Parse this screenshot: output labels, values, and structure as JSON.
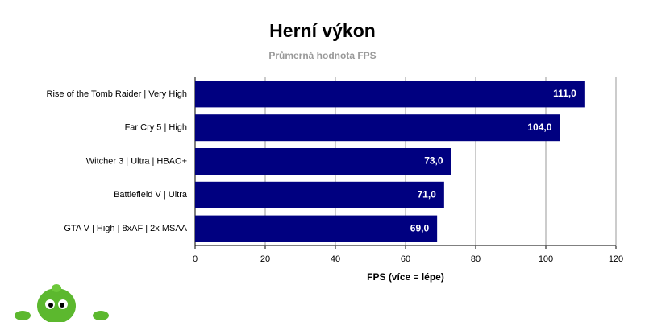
{
  "chart_data": {
    "type": "bar",
    "orientation": "horizontal",
    "title": "Herní výkon",
    "subtitle": "Průmerná hodnota FPS",
    "x_label": "FPS (více = lépe)",
    "categories": [
      "Rise of the Tomb Raider | Very High",
      "Far Cry 5 | High",
      "Witcher 3 | Ultra | HBAO+",
      "Battlefield V | Ultra",
      "GTA V | High | 8xAF | 2x MSAA"
    ],
    "values": [
      111.0,
      104.0,
      73.0,
      71.0,
      69.0
    ],
    "value_labels": [
      "111,0",
      "104,0",
      "73,0",
      "71,0",
      "69,0"
    ],
    "color": "#000080",
    "xlim": [
      0,
      120
    ],
    "xticks": [
      0,
      20,
      40,
      60,
      80,
      100,
      120
    ],
    "grid": true
  }
}
